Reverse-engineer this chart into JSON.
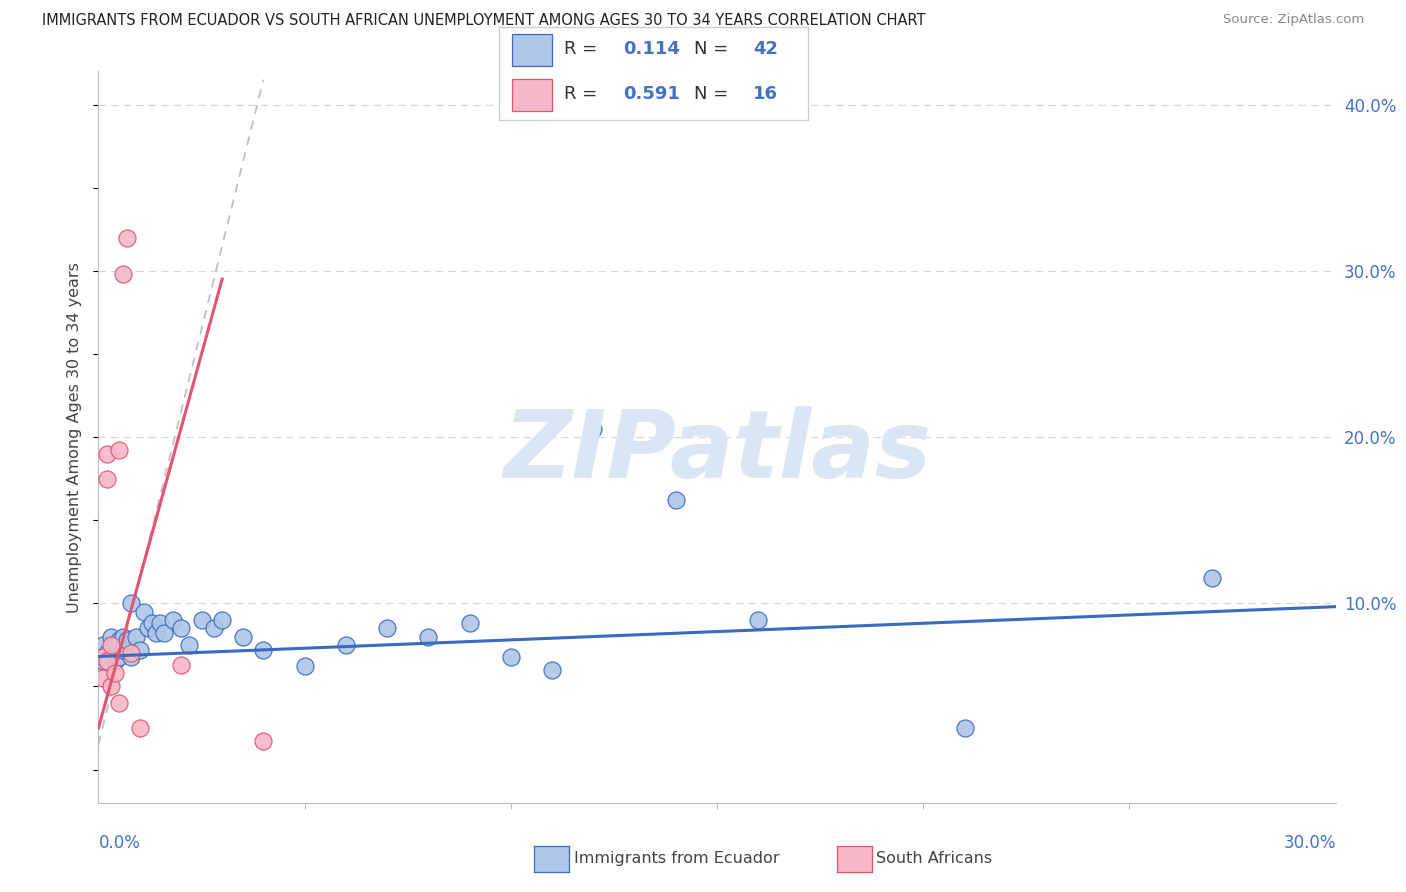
{
  "title": "IMMIGRANTS FROM ECUADOR VS SOUTH AFRICAN UNEMPLOYMENT AMONG AGES 30 TO 34 YEARS CORRELATION CHART",
  "source": "Source: ZipAtlas.com",
  "ylabel": "Unemployment Among Ages 30 to 34 years",
  "xmin": 0.0,
  "xmax": 0.3,
  "ymin": -0.02,
  "ymax": 0.42,
  "watermark": "ZIPatlas",
  "blue_scatter_x": [
    0.001,
    0.001,
    0.002,
    0.003,
    0.003,
    0.004,
    0.004,
    0.005,
    0.005,
    0.006,
    0.006,
    0.007,
    0.008,
    0.008,
    0.009,
    0.01,
    0.011,
    0.012,
    0.013,
    0.014,
    0.015,
    0.016,
    0.018,
    0.02,
    0.022,
    0.025,
    0.028,
    0.03,
    0.035,
    0.04,
    0.05,
    0.06,
    0.07,
    0.08,
    0.09,
    0.1,
    0.11,
    0.12,
    0.14,
    0.16,
    0.21,
    0.27
  ],
  "blue_scatter_y": [
    0.075,
    0.065,
    0.07,
    0.08,
    0.068,
    0.075,
    0.065,
    0.078,
    0.068,
    0.08,
    0.072,
    0.078,
    0.1,
    0.068,
    0.08,
    0.072,
    0.095,
    0.085,
    0.088,
    0.082,
    0.088,
    0.082,
    0.09,
    0.085,
    0.075,
    0.09,
    0.085,
    0.09,
    0.08,
    0.072,
    0.062,
    0.075,
    0.085,
    0.08,
    0.088,
    0.068,
    0.06,
    0.205,
    0.162,
    0.09,
    0.025,
    0.115
  ],
  "pink_scatter_x": [
    0.001,
    0.001,
    0.002,
    0.002,
    0.002,
    0.003,
    0.003,
    0.004,
    0.005,
    0.005,
    0.006,
    0.007,
    0.008,
    0.01,
    0.02,
    0.04
  ],
  "pink_scatter_y": [
    0.068,
    0.055,
    0.19,
    0.175,
    0.065,
    0.05,
    0.075,
    0.058,
    0.192,
    0.04,
    0.298,
    0.32,
    0.07,
    0.025,
    0.063,
    0.017
  ],
  "blue_line_x": [
    0.0,
    0.3
  ],
  "blue_line_y": [
    0.068,
    0.098
  ],
  "pink_line_x": [
    0.0,
    0.03
  ],
  "pink_line_y": [
    0.025,
    0.295
  ],
  "dash_line_x": [
    0.0,
    0.04
  ],
  "dash_line_y": [
    0.015,
    0.415
  ],
  "blue_color": "#aec6e8",
  "pink_color": "#f4b8c8",
  "blue_line_color": "#3a6bbf",
  "pink_line_color": "#e05570",
  "grid_color": "#d8d8d8",
  "right_label_color": "#4472c4",
  "watermark_color": "#dae6f5",
  "legend_text_color": "#333333",
  "legend_value_color": "#4472c4"
}
